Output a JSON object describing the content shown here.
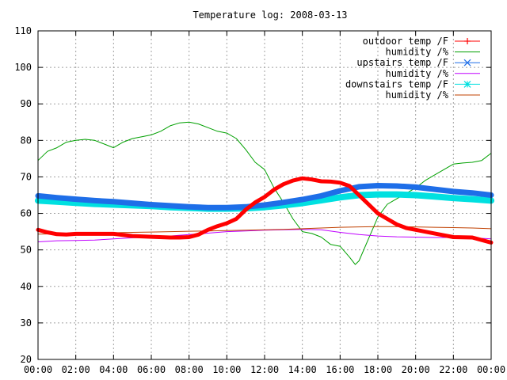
{
  "chart_data": {
    "type": "line",
    "title": "Temperature log: 2008-03-13",
    "xlabel": "",
    "ylabel": "",
    "xlim": [
      "00:00",
      "24:00"
    ],
    "ylim": [
      20,
      110
    ],
    "grid": true,
    "legend_position": "top-right",
    "x_ticks": [
      "00:00",
      "02:00",
      "04:00",
      "06:00",
      "08:00",
      "10:00",
      "12:00",
      "14:00",
      "16:00",
      "18:00",
      "20:00",
      "22:00",
      "00:00"
    ],
    "y_ticks": [
      20,
      30,
      40,
      50,
      60,
      70,
      80,
      90,
      100,
      110
    ],
    "series": [
      {
        "name": "outdoor temp /F",
        "color": "#ff0000",
        "marker": "plus",
        "x": [
          0,
          0.5,
          1,
          1.5,
          2,
          3,
          4,
          5,
          6,
          7,
          7.5,
          8,
          8.5,
          9,
          9.5,
          10,
          10.5,
          11,
          11.5,
          12,
          12.5,
          13,
          13.5,
          14,
          14.5,
          15,
          15.5,
          16,
          16.5,
          17,
          17.5,
          18,
          18.5,
          19,
          19.5,
          20,
          21,
          22,
          23,
          24
        ],
        "y": [
          55.5,
          54.8,
          54.3,
          54.2,
          54.4,
          54.4,
          54.4,
          53.8,
          53.6,
          53.4,
          53.4,
          53.5,
          54.2,
          55.5,
          56.5,
          57.3,
          58.5,
          61,
          63,
          64.5,
          66.5,
          68,
          69,
          69.6,
          69.3,
          68.8,
          68.7,
          68.4,
          67.5,
          65,
          62.5,
          60,
          58.5,
          57,
          56,
          55.5,
          54.5,
          53.5,
          53.4,
          52
        ]
      },
      {
        "name": "humidity /%",
        "color": "#00a000",
        "marker": "none",
        "x": [
          0,
          0.5,
          1,
          1.5,
          2,
          2.5,
          3,
          3.5,
          4,
          4.5,
          5,
          5.5,
          6,
          6.5,
          7,
          7.5,
          8,
          8.5,
          9,
          9.5,
          10,
          10.5,
          11,
          11.5,
          12,
          12.5,
          13,
          13.5,
          14,
          14.5,
          15,
          15.5,
          16,
          16.5,
          16.8,
          17,
          17.5,
          18,
          18.5,
          19,
          19.5,
          20,
          20.5,
          21,
          21.5,
          22,
          22.5,
          23,
          23.5,
          24
        ],
        "y": [
          74.5,
          77,
          78,
          79.5,
          80,
          80.3,
          80,
          79,
          78,
          79.5,
          80.5,
          81,
          81.5,
          82.5,
          84,
          84.8,
          85,
          84.5,
          83.5,
          82.5,
          82,
          80.5,
          77.5,
          74,
          72,
          67,
          63,
          58.5,
          55,
          54.5,
          53.5,
          51.5,
          51,
          48,
          46,
          47,
          53,
          59,
          62.5,
          64,
          65.5,
          67,
          69,
          70.5,
          72,
          73.5,
          73.8,
          74,
          74.5,
          76.5
        ]
      },
      {
        "name": "upstairs temp /F",
        "color": "#1e6ee8",
        "marker": "x",
        "x": [
          0,
          1,
          2,
          3,
          4,
          5,
          6,
          7,
          8,
          9,
          10,
          11,
          12,
          13,
          14,
          15,
          16,
          17,
          18,
          19,
          20,
          21,
          22,
          23,
          24
        ],
        "y": [
          64.8,
          64.3,
          63.9,
          63.5,
          63.2,
          62.8,
          62.4,
          62.1,
          61.8,
          61.6,
          61.6,
          61.8,
          62.3,
          63,
          63.8,
          64.8,
          66.2,
          67.3,
          67.6,
          67.5,
          67.2,
          66.6,
          66,
          65.6,
          65
        ]
      },
      {
        "name": "humidity /%",
        "color": "#c000ff",
        "marker": "none",
        "x": [
          0,
          1,
          2,
          3,
          4,
          5,
          6,
          7,
          8,
          9,
          10,
          11,
          12,
          13,
          14,
          15,
          16,
          17,
          18,
          19,
          20,
          21,
          22,
          23,
          24
        ],
        "y": [
          52.2,
          52.5,
          52.6,
          52.7,
          53,
          53.3,
          53.5,
          53.8,
          54.2,
          54.6,
          55,
          55.2,
          55.4,
          55.5,
          55.6,
          55.5,
          54.8,
          54.2,
          53.8,
          53.6,
          53.5,
          53.4,
          53.4,
          53.3,
          53
        ]
      },
      {
        "name": "downstairs temp /F",
        "color": "#00e0e0",
        "marker": "asterisk",
        "x": [
          0,
          1,
          2,
          3,
          4,
          5,
          6,
          7,
          8,
          9,
          10,
          11,
          12,
          13,
          14,
          15,
          16,
          17,
          18,
          19,
          20,
          21,
          22,
          23,
          24
        ],
        "y": [
          63.5,
          63.2,
          62.9,
          62.6,
          62.4,
          62.2,
          62,
          61.7,
          61.5,
          61.3,
          61.3,
          61.4,
          61.7,
          62.2,
          62.8,
          63.6,
          64.4,
          65,
          65.2,
          65.2,
          65,
          64.6,
          64.2,
          63.9,
          63.5
        ]
      },
      {
        "name": "humidity /%",
        "color": "#c04000",
        "marker": "none",
        "x": [
          0,
          1,
          2,
          3,
          4,
          5,
          6,
          7,
          8,
          9,
          10,
          11,
          12,
          13,
          14,
          15,
          16,
          17,
          18,
          19,
          20,
          21,
          22,
          23,
          24
        ],
        "y": [
          54.3,
          54.4,
          54.5,
          54.6,
          54.7,
          54.8,
          54.9,
          55,
          55.1,
          55.2,
          55.3,
          55.4,
          55.5,
          55.6,
          55.8,
          56,
          56.2,
          56.3,
          56.4,
          56.4,
          56.3,
          56.2,
          56.1,
          56,
          55.8
        ]
      }
    ]
  }
}
